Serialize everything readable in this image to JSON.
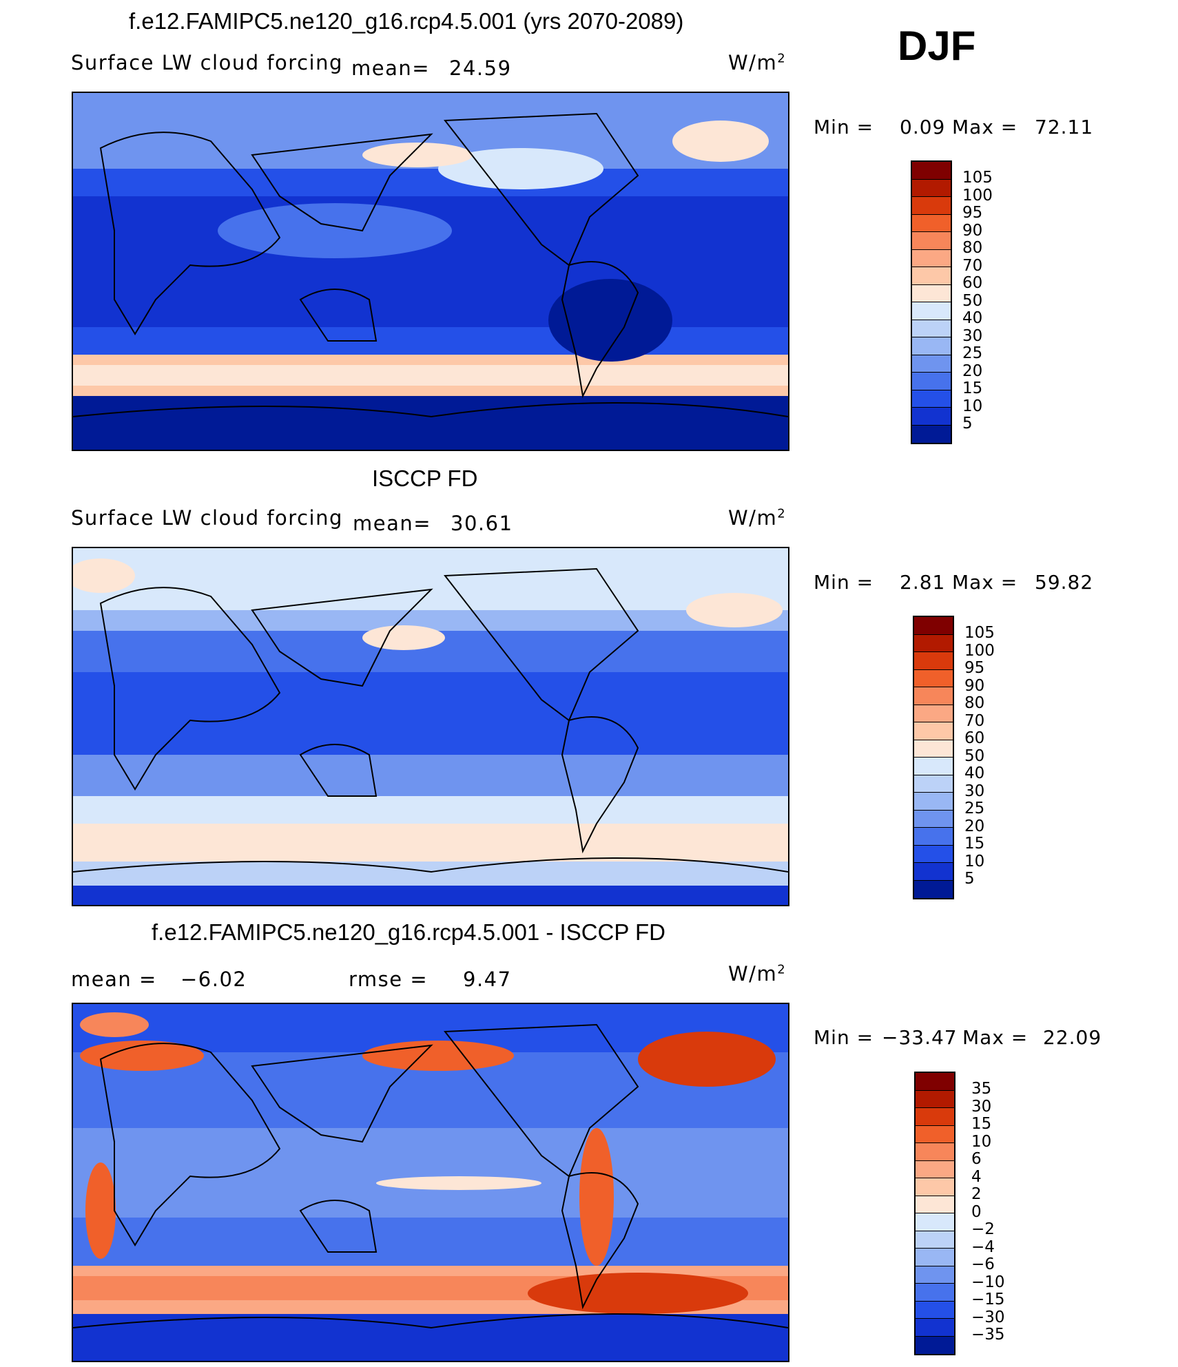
{
  "season": "DJF",
  "units_label": "W/m",
  "units_sup": "2",
  "panels": [
    {
      "title": "f.e12.FAMIPC5.ne120_g16.rcp4.5.001 (yrs 2070-2089)",
      "left_label": "Surface LW cloud forcing",
      "mean_label": "mean=",
      "mean_value": "24.59",
      "min_label": "Min =",
      "min_value": "0.09",
      "max_label": "Max =",
      "max_value": "72.11"
    },
    {
      "title": "ISCCP FD",
      "left_label": "Surface LW cloud forcing",
      "mean_label": "mean=",
      "mean_value": "30.61",
      "min_label": "Min =",
      "min_value": "2.81",
      "max_label": "Max =",
      "max_value": "59.82"
    },
    {
      "title": "f.e12.FAMIPC5.ne120_g16.rcp4.5.001 - ISCCP FD",
      "mean_label": "mean =",
      "mean_value": "−6.02",
      "rmse_label": "rmse =",
      "rmse_value": "9.47",
      "min_label": "Min =",
      "min_value": "−33.47",
      "max_label": "Max =",
      "max_value": "22.09"
    }
  ],
  "chart_data": [
    {
      "type": "heatmap",
      "title": "f.e12.FAMIPC5.ne120_g16.rcp4.5.001 (yrs 2070-2089)",
      "variable": "Surface LW cloud forcing",
      "units": "W/m2",
      "mean": 24.59,
      "min": 0.09,
      "max": 72.11,
      "colorbar_levels": [
        "105",
        "100",
        "95",
        "90",
        "80",
        "70",
        "60",
        "50",
        "40",
        "30",
        "25",
        "20",
        "15",
        "10",
        "5"
      ],
      "colorbar_colors": [
        "#7f0000",
        "#b21a00",
        "#d93a0c",
        "#f0602a",
        "#f7865a",
        "#fba884",
        "#fdc8a8",
        "#fde6d6",
        "#d8e8fb",
        "#bcd2f7",
        "#99b7f4",
        "#6f94ef",
        "#4772ec",
        "#2450e8",
        "#1233d0",
        "#001a96"
      ]
    },
    {
      "type": "heatmap",
      "title": "ISCCP FD",
      "variable": "Surface LW cloud forcing",
      "units": "W/m2",
      "mean": 30.61,
      "min": 2.81,
      "max": 59.82,
      "colorbar_levels": [
        "105",
        "100",
        "95",
        "90",
        "80",
        "70",
        "60",
        "50",
        "40",
        "30",
        "25",
        "20",
        "15",
        "10",
        "5"
      ],
      "colorbar_colors": [
        "#7f0000",
        "#b21a00",
        "#d93a0c",
        "#f0602a",
        "#f7865a",
        "#fba884",
        "#fdc8a8",
        "#fde6d6",
        "#d8e8fb",
        "#bcd2f7",
        "#99b7f4",
        "#6f94ef",
        "#4772ec",
        "#2450e8",
        "#1233d0",
        "#001a96"
      ]
    },
    {
      "type": "heatmap",
      "title": "f.e12.FAMIPC5.ne120_g16.rcp4.5.001 - ISCCP FD",
      "units": "W/m2",
      "mean": -6.02,
      "rmse": 9.47,
      "min": -33.47,
      "max": 22.09,
      "colorbar_levels": [
        "35",
        "30",
        "15",
        "10",
        "6",
        "4",
        "2",
        "0",
        "−2",
        "−4",
        "−6",
        "−10",
        "−15",
        "−30",
        "−35"
      ],
      "colorbar_colors": [
        "#7f0000",
        "#b21a00",
        "#d93a0c",
        "#f0602a",
        "#f7865a",
        "#fba884",
        "#fdc8a8",
        "#fde6d6",
        "#d8e8fb",
        "#bcd2f7",
        "#99b7f4",
        "#6f94ef",
        "#4772ec",
        "#2450e8",
        "#1233d0",
        "#001a96"
      ]
    }
  ]
}
